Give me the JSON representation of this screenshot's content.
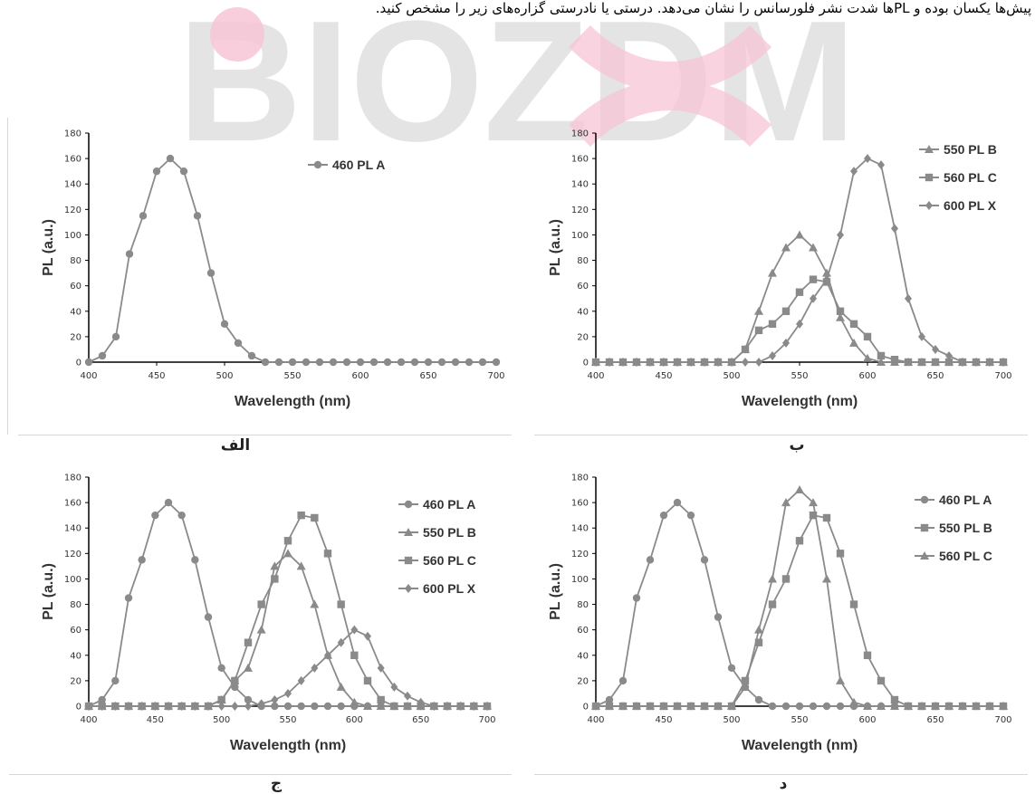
{
  "header": {
    "text": "پیش‌ها یکسان بوده و PL‌ها شدت نشر فلورسانس را نشان می‌دهد. درستی یا نادرستی گزاره‌های زیر را مشخص کنید."
  },
  "watermark": {
    "text": "BIOZDM",
    "gray": "#cfcfcf",
    "pink": "#f7c6d6"
  },
  "captions": {
    "a": "الف",
    "b": "ب",
    "c": "ج",
    "d": "د"
  },
  "colors": {
    "series_line": "#8a8a8a",
    "axis": "#000000",
    "text": "#333333"
  },
  "chart_data": [
    {
      "id": "a",
      "type": "line",
      "xlabel": "Wavelength (nm)",
      "ylabel": "PL (a.u.)",
      "xlim": [
        400,
        700
      ],
      "ylim": [
        0,
        180
      ],
      "xticks": [
        400,
        450,
        500,
        550,
        600,
        650,
        700
      ],
      "yticks": [
        0,
        20,
        40,
        60,
        80,
        100,
        120,
        140,
        160,
        180
      ],
      "series": [
        {
          "name": "460 PL A",
          "marker": "circle",
          "x": [
            400,
            410,
            420,
            430,
            440,
            450,
            460,
            470,
            480,
            490,
            500,
            510,
            520,
            530,
            540,
            550,
            560,
            570,
            580,
            590,
            600,
            610,
            620,
            630,
            640,
            650,
            660,
            670,
            680,
            690,
            700
          ],
          "y": [
            0,
            5,
            20,
            85,
            115,
            150,
            160,
            150,
            115,
            70,
            30,
            15,
            5,
            0,
            0,
            0,
            0,
            0,
            0,
            0,
            0,
            0,
            0,
            0,
            0,
            0,
            0,
            0,
            0,
            0,
            0
          ]
        }
      ]
    },
    {
      "id": "b",
      "type": "line",
      "xlabel": "Wavelength (nm)",
      "ylabel": "PL (a.u.)",
      "xlim": [
        400,
        700
      ],
      "ylim": [
        0,
        180
      ],
      "xticks": [
        400,
        450,
        500,
        550,
        600,
        650,
        700
      ],
      "yticks": [
        0,
        20,
        40,
        60,
        80,
        100,
        120,
        140,
        160,
        180
      ],
      "series": [
        {
          "name": "550 PL B",
          "marker": "triangle",
          "x": [
            400,
            410,
            420,
            430,
            440,
            450,
            460,
            470,
            480,
            490,
            500,
            510,
            520,
            530,
            540,
            550,
            560,
            570,
            580,
            590,
            600,
            610,
            620,
            630,
            640,
            650,
            660,
            670,
            680,
            690,
            700
          ],
          "y": [
            0,
            0,
            0,
            0,
            0,
            0,
            0,
            0,
            0,
            0,
            0,
            10,
            40,
            70,
            90,
            100,
            90,
            70,
            35,
            15,
            3,
            0,
            0,
            0,
            0,
            0,
            0,
            0,
            0,
            0,
            0
          ]
        },
        {
          "name": "560 PL C",
          "marker": "square",
          "x": [
            400,
            410,
            420,
            430,
            440,
            450,
            460,
            470,
            480,
            490,
            500,
            510,
            520,
            530,
            540,
            550,
            560,
            570,
            580,
            590,
            600,
            610,
            620,
            630,
            640,
            650,
            660,
            670,
            680,
            690,
            700
          ],
          "y": [
            0,
            0,
            0,
            0,
            0,
            0,
            0,
            0,
            0,
            0,
            0,
            10,
            25,
            30,
            40,
            55,
            65,
            63,
            40,
            30,
            20,
            5,
            2,
            0,
            0,
            0,
            0,
            0,
            0,
            0,
            0
          ]
        },
        {
          "name": "600 PL X",
          "marker": "diamond",
          "x": [
            400,
            410,
            420,
            430,
            440,
            450,
            460,
            470,
            480,
            490,
            500,
            510,
            520,
            530,
            540,
            550,
            560,
            570,
            580,
            590,
            600,
            610,
            620,
            630,
            640,
            650,
            660,
            670,
            680,
            690,
            700
          ],
          "y": [
            0,
            0,
            0,
            0,
            0,
            0,
            0,
            0,
            0,
            0,
            0,
            0,
            0,
            5,
            15,
            30,
            50,
            65,
            100,
            150,
            160,
            155,
            105,
            50,
            20,
            10,
            5,
            0,
            0,
            0,
            0
          ]
        }
      ]
    },
    {
      "id": "c",
      "type": "line",
      "xlabel": "Wavelength (nm)",
      "ylabel": "PL (a.u.)",
      "xlim": [
        400,
        700
      ],
      "ylim": [
        0,
        180
      ],
      "xticks": [
        400,
        450,
        500,
        550,
        600,
        650,
        700
      ],
      "yticks": [
        0,
        20,
        40,
        60,
        80,
        100,
        120,
        140,
        160,
        180
      ],
      "series": [
        {
          "name": "460 PL A",
          "marker": "circle",
          "x": [
            400,
            410,
            420,
            430,
            440,
            450,
            460,
            470,
            480,
            490,
            500,
            510,
            520,
            530,
            540,
            550,
            560,
            570,
            580,
            590,
            600,
            610,
            620,
            630,
            640,
            650,
            660,
            670,
            680,
            690,
            700
          ],
          "y": [
            0,
            5,
            20,
            85,
            115,
            150,
            160,
            150,
            115,
            70,
            30,
            15,
            5,
            0,
            0,
            0,
            0,
            0,
            0,
            0,
            0,
            0,
            0,
            0,
            0,
            0,
            0,
            0,
            0,
            0,
            0
          ]
        },
        {
          "name": "550 PL B",
          "marker": "triangle",
          "x": [
            400,
            410,
            420,
            430,
            440,
            450,
            460,
            470,
            480,
            490,
            500,
            510,
            520,
            530,
            540,
            550,
            560,
            570,
            580,
            590,
            600,
            610,
            620,
            630,
            640,
            650,
            660,
            670,
            680,
            690,
            700
          ],
          "y": [
            0,
            0,
            0,
            0,
            0,
            0,
            0,
            0,
            0,
            0,
            5,
            20,
            30,
            60,
            110,
            120,
            110,
            80,
            40,
            15,
            3,
            0,
            0,
            0,
            0,
            0,
            0,
            0,
            0,
            0,
            0
          ]
        },
        {
          "name": "560 PL C",
          "marker": "square",
          "x": [
            400,
            410,
            420,
            430,
            440,
            450,
            460,
            470,
            480,
            490,
            500,
            510,
            520,
            530,
            540,
            550,
            560,
            570,
            580,
            590,
            600,
            610,
            620,
            630,
            640,
            650,
            660,
            670,
            680,
            690,
            700
          ],
          "y": [
            0,
            0,
            0,
            0,
            0,
            0,
            0,
            0,
            0,
            0,
            5,
            20,
            50,
            80,
            100,
            130,
            150,
            148,
            120,
            80,
            40,
            20,
            5,
            0,
            0,
            0,
            0,
            0,
            0,
            0,
            0
          ]
        },
        {
          "name": "600 PL X",
          "marker": "diamond",
          "x": [
            400,
            410,
            420,
            430,
            440,
            450,
            460,
            470,
            480,
            490,
            500,
            510,
            520,
            530,
            540,
            550,
            560,
            570,
            580,
            590,
            600,
            610,
            620,
            630,
            640,
            650,
            660,
            670,
            680,
            690,
            700
          ],
          "y": [
            0,
            0,
            0,
            0,
            0,
            0,
            0,
            0,
            0,
            0,
            0,
            0,
            0,
            2,
            5,
            10,
            20,
            30,
            40,
            50,
            60,
            55,
            30,
            15,
            8,
            3,
            0,
            0,
            0,
            0,
            0
          ]
        }
      ]
    },
    {
      "id": "d",
      "type": "line",
      "xlabel": "Wavelength (nm)",
      "ylabel": "PL (a.u.)",
      "xlim": [
        400,
        700
      ],
      "ylim": [
        0,
        180
      ],
      "xticks": [
        400,
        450,
        500,
        550,
        600,
        650,
        700
      ],
      "yticks": [
        0,
        20,
        40,
        60,
        80,
        100,
        120,
        140,
        160,
        180
      ],
      "series": [
        {
          "name": "460 PL A",
          "marker": "circle",
          "x": [
            400,
            410,
            420,
            430,
            440,
            450,
            460,
            470,
            480,
            490,
            500,
            510,
            520,
            530,
            540,
            550,
            560,
            570,
            580,
            590,
            600,
            610,
            620,
            630,
            640,
            650,
            660,
            670,
            680,
            690,
            700
          ],
          "y": [
            0,
            5,
            20,
            85,
            115,
            150,
            160,
            150,
            115,
            70,
            30,
            15,
            5,
            0,
            0,
            0,
            0,
            0,
            0,
            0,
            0,
            0,
            0,
            0,
            0,
            0,
            0,
            0,
            0,
            0,
            0
          ]
        },
        {
          "name": "550 PL B",
          "marker": "square",
          "x": [
            400,
            410,
            420,
            430,
            440,
            450,
            460,
            470,
            480,
            490,
            500,
            510,
            520,
            530,
            540,
            550,
            560,
            570,
            580,
            590,
            600,
            610,
            620,
            630,
            640,
            650,
            660,
            670,
            680,
            690,
            700
          ],
          "y": [
            0,
            0,
            0,
            0,
            0,
            0,
            0,
            0,
            0,
            0,
            0,
            20,
            50,
            80,
            100,
            130,
            150,
            148,
            120,
            80,
            40,
            20,
            5,
            0,
            0,
            0,
            0,
            0,
            0,
            0,
            0
          ]
        },
        {
          "name": "560 PL C",
          "marker": "triangle",
          "x": [
            400,
            410,
            420,
            430,
            440,
            450,
            460,
            470,
            480,
            490,
            500,
            510,
            520,
            530,
            540,
            550,
            560,
            570,
            580,
            590,
            600,
            610,
            620,
            630,
            640,
            650,
            660,
            670,
            680,
            690,
            700
          ],
          "y": [
            0,
            0,
            0,
            0,
            0,
            0,
            0,
            0,
            0,
            0,
            0,
            15,
            60,
            100,
            160,
            170,
            160,
            100,
            20,
            3,
            0,
            0,
            0,
            0,
            0,
            0,
            0,
            0,
            0,
            0,
            0
          ]
        }
      ]
    }
  ]
}
